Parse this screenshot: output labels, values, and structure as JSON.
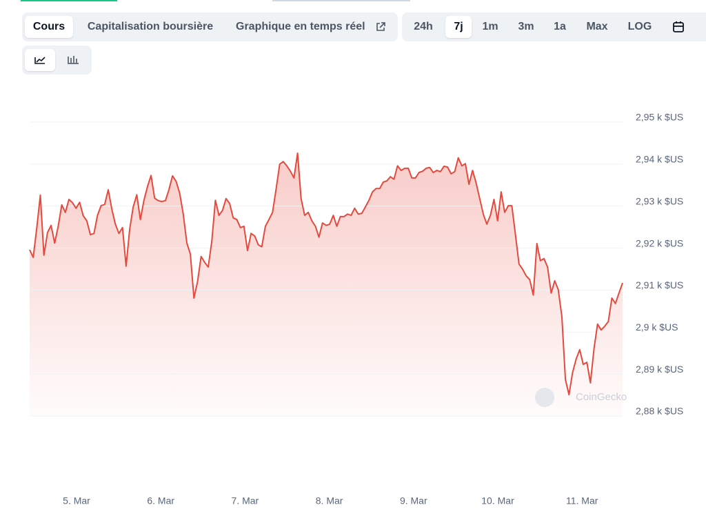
{
  "tabs": [
    "Cours",
    "Capitalisation boursière",
    "Graphique en temps réel"
  ],
  "active_tab": 0,
  "ranges": [
    "24h",
    "7j",
    "1m",
    "3m",
    "1a",
    "Max",
    "LOG"
  ],
  "active_range": 1,
  "chart_data": {
    "type": "line",
    "x_labels": [
      "5. Mar",
      "6. Mar",
      "7. Mar",
      "8. Mar",
      "9. Mar",
      "10. Mar",
      "11. Mar"
    ],
    "color": "#e5483c",
    "watermark": "CoinGecko",
    "values": [
      2919.6,
      2917.8,
      2924.9,
      2932.6,
      2918.3,
      2923.7,
      2925.4,
      2921.2,
      2925.2,
      2930.3,
      2928.5,
      2931.6,
      2930.8,
      2929.5,
      2930.9,
      2927.7,
      2926.5,
      2923.2,
      2923.5,
      2927.8,
      2930.1,
      2930.4,
      2933.9,
      2929.3,
      2925.7,
      2923.5,
      2924.9,
      2915.7,
      2924.5,
      2929.8,
      2932.7,
      2926.8,
      2931.4,
      2934.7,
      2937.3,
      2931.9,
      2931.3,
      2931.1,
      2931.3,
      2933.9,
      2937.2,
      2935.9,
      2933.1,
      2928.1,
      2921.2,
      2918.6,
      2908.1,
      2912.0,
      2918.0,
      2916.6,
      2915.5,
      2921.6,
      2931.4,
      2927.8,
      2929.0,
      2931.8,
      2930.6,
      2927.2,
      2926.8,
      2924.9,
      2925.2,
      2919.4,
      2923.5,
      2922.9,
      2920.8,
      2920.3,
      2925.2,
      2926.8,
      2928.5,
      2934.1,
      2940.0,
      2940.6,
      2939.6,
      2938.3,
      2936.7,
      2942.6,
      2931.8,
      2927.8,
      2928.5,
      2926.5,
      2925.2,
      2922.6,
      2926.0,
      2925.4,
      2925.7,
      2927.8,
      2925.2,
      2927.5,
      2927.5,
      2928.1,
      2927.8,
      2929.5,
      2928.1,
      2928.3,
      2929.8,
      2931.4,
      2933.4,
      2934.2,
      2934.2,
      2935.7,
      2936.0,
      2937.0,
      2936.4,
      2939.6,
      2938.5,
      2939.0,
      2939.0,
      2936.7,
      2936.7,
      2938.0,
      2938.3,
      2939.0,
      2939.2,
      2938.0,
      2938.5,
      2938.2,
      2939.5,
      2939.3,
      2937.7,
      2938.2,
      2941.5,
      2939.6,
      2940.1,
      2935.2,
      2938.5,
      2935.5,
      2931.8,
      2928.1,
      2925.7,
      2927.8,
      2931.6,
      2926.5,
      2933.4,
      2928.5,
      2930.1,
      2930.1,
      2923.2,
      2916.2,
      2915.0,
      2913.4,
      2912.5,
      2908.8,
      2921.1,
      2917.0,
      2917.5,
      2915.5,
      2909.3,
      2912.2,
      2910.1,
      2903.8,
      2888.7,
      2885.1,
      2890.4,
      2893.6,
      2895.8,
      2892.3,
      2892.8,
      2887.9,
      2896.1,
      2901.9,
      2900.5,
      2901.4,
      2902.5,
      2908.1,
      2906.8,
      2909.3,
      2911.7
    ],
    "ylim": [
      2880,
      2950
    ],
    "yticks": [
      {
        "value": 2880,
        "label": "2,88 k $US"
      },
      {
        "value": 2890,
        "label": "2,89 k $US"
      },
      {
        "value": 2900,
        "label": "2,9 k $US"
      },
      {
        "value": 2910,
        "label": "2,91 k $US"
      },
      {
        "value": 2920,
        "label": "2,92 k $US"
      },
      {
        "value": 2930,
        "label": "2,93 k $US"
      },
      {
        "value": 2940,
        "label": "2,94 k $US"
      },
      {
        "value": 2950,
        "label": "2,95 k $US"
      }
    ],
    "grid": true
  }
}
